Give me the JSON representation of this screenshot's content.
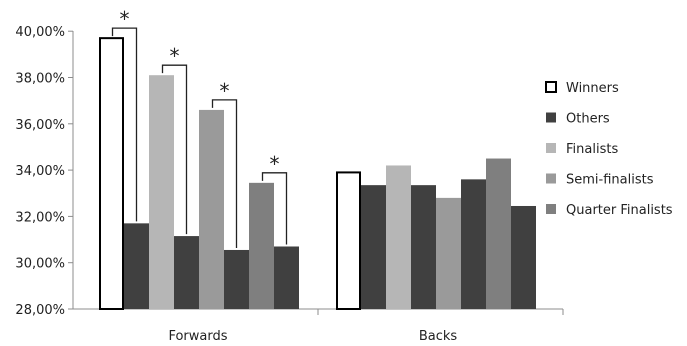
{
  "chart_data": {
    "type": "bar",
    "categories": [
      "Forwards",
      "Backs"
    ],
    "ylim": [
      28,
      40
    ],
    "yticks": [
      "28,00%",
      "30,00%",
      "32,00%",
      "34,00%",
      "36,00%",
      "38,00%",
      "40,00%"
    ],
    "grid": false,
    "legend_position": "right",
    "bars": {
      "Forwards": [
        {
          "series": "Winners",
          "value": 39.7
        },
        {
          "series": "Others",
          "value": 31.7
        },
        {
          "series": "Finalists",
          "value": 38.1
        },
        {
          "series": "Others",
          "value": 31.15
        },
        {
          "series": "Semi-finalists",
          "value": 36.6
        },
        {
          "series": "Others",
          "value": 30.55
        },
        {
          "series": "Quarter Finalists",
          "value": 33.45
        },
        {
          "series": "Others",
          "value": 30.7
        }
      ],
      "Backs": [
        {
          "series": "Winners",
          "value": 33.9
        },
        {
          "series": "Others",
          "value": 33.35
        },
        {
          "series": "Finalists",
          "value": 34.2
        },
        {
          "series": "Others",
          "value": 33.35
        },
        {
          "series": "Semi-finalists",
          "value": 32.8
        },
        {
          "series": "Others",
          "value": 33.6
        },
        {
          "series": "Quarter Finalists",
          "value": 34.5
        },
        {
          "series": "Others",
          "value": 32.45
        }
      ]
    },
    "legend": [
      {
        "name": "Winners",
        "color": "#ffffff",
        "stroke": "#000000"
      },
      {
        "name": "Others",
        "color": "#404040",
        "stroke": "none"
      },
      {
        "name": "Finalists",
        "color": "#b6b6b6",
        "stroke": "none"
      },
      {
        "name": "Semi-finalists",
        "color": "#9a9a9a",
        "stroke": "none"
      },
      {
        "name": "Quarter Finalists",
        "color": "#7f7f7f",
        "stroke": "none"
      }
    ],
    "significance_marker": "*"
  }
}
